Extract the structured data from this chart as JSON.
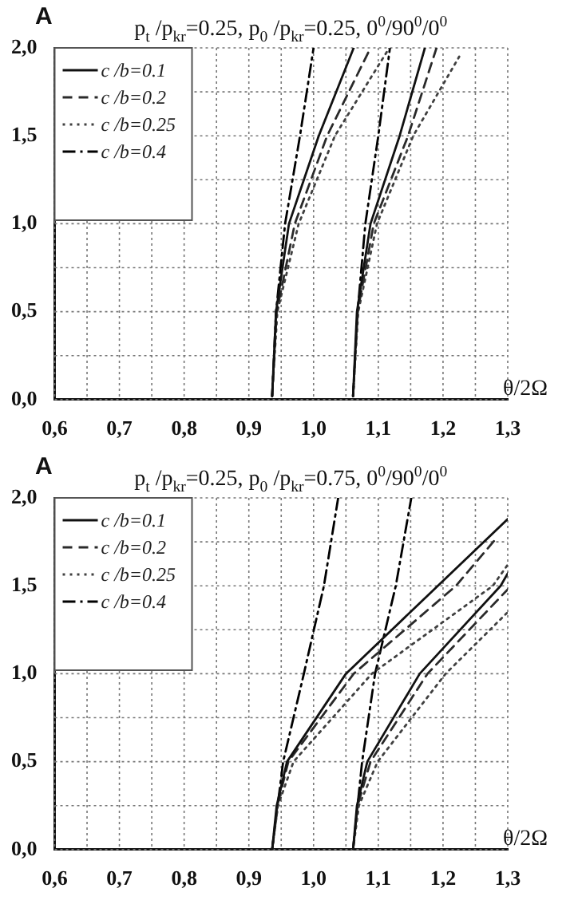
{
  "chart_data": [
    {
      "type": "line",
      "title": "p$_{t}$ /p$_{kr}$=0.25, p$_{0}$ /p$_{kr}$=0.25, 0$^{0}$/90$^{0}$/0$^{0}$",
      "xlabel": "θ/2Ω",
      "annotations": [
        "A"
      ],
      "xlim": [
        0.6,
        1.3
      ],
      "ylim": [
        0,
        2
      ],
      "xticks": [
        {
          "value": 0.6,
          "label": "0,6"
        },
        {
          "value": 0.65,
          "label": null
        },
        {
          "value": 0.7,
          "label": "0,7"
        },
        {
          "value": 0.75,
          "label": null
        },
        {
          "value": 0.8,
          "label": "0,8"
        },
        {
          "value": 0.85,
          "label": null
        },
        {
          "value": 0.9,
          "label": "0,9"
        },
        {
          "value": 0.95,
          "label": null
        },
        {
          "value": 1.0,
          "label": "1,0"
        },
        {
          "value": 1.05,
          "label": null
        },
        {
          "value": 1.1,
          "label": "1,1"
        },
        {
          "value": 1.15,
          "label": null
        },
        {
          "value": 1.2,
          "label": "1,2"
        },
        {
          "value": 1.25,
          "label": null
        },
        {
          "value": 1.3,
          "label": "1,3"
        }
      ],
      "yticks": [
        {
          "value": 0,
          "label": "0,0"
        },
        {
          "value": 0.25,
          "label": null
        },
        {
          "value": 0.5,
          "label": "0,5"
        },
        {
          "value": 0.75,
          "label": null
        },
        {
          "value": 1.0,
          "label": "1,0"
        },
        {
          "value": 1.25,
          "label": null
        },
        {
          "value": 1.5,
          "label": "1,5"
        },
        {
          "value": 1.75,
          "label": null
        },
        {
          "value": 2.0,
          "label": "2,0"
        }
      ],
      "grid": true,
      "legend": "top left",
      "marker": "none",
      "series": [
        {
          "name": "c /b=0.1",
          "color": "#111111",
          "line_style": "solid",
          "x": [
            0.936,
            0.942,
            0.962,
            1.008,
            1.062,
            null,
            1.061,
            1.067,
            1.088,
            1.133,
            1.172
          ],
          "values": [
            0.02,
            0.5,
            1.0,
            1.5,
            2.0,
            null,
            0.02,
            0.5,
            1.0,
            1.5,
            2.0
          ]
        },
        {
          "name": "c /b=0.2",
          "color": "#2a2a2a",
          "line_style": "dashed",
          "x": [
            0.936,
            0.943,
            0.971,
            1.021,
            1.088,
            null,
            1.061,
            1.068,
            1.093,
            1.146,
            1.19
          ],
          "values": [
            0.02,
            0.5,
            1.0,
            1.5,
            2.0,
            null,
            0.02,
            0.5,
            1.0,
            1.5,
            2.0
          ]
        },
        {
          "name": "c /b=0.25",
          "color": "#404040",
          "line_style": "dotted",
          "x": [
            0.936,
            0.944,
            0.977,
            1.033,
            1.117,
            null,
            1.061,
            1.069,
            1.098,
            1.154,
            1.225
          ],
          "values": [
            0.02,
            0.5,
            1.0,
            1.5,
            2.0,
            null,
            0.02,
            0.5,
            1.0,
            1.5,
            1.95
          ]
        },
        {
          "name": "c /b=0.4",
          "color": "#000000",
          "line_style": "dashdot",
          "x": [
            0.936,
            0.942,
            0.956,
            0.979,
            1.0,
            null,
            1.061,
            1.068,
            1.08,
            1.1,
            1.118
          ],
          "values": [
            0.02,
            0.5,
            1.0,
            1.5,
            2.0,
            null,
            0.02,
            0.5,
            1.0,
            1.5,
            2.0
          ]
        }
      ]
    },
    {
      "type": "line",
      "title": "p$_{t}$ /p$_{kr}$=0.25, p$_{0}$ /p$_{kr}$=0.75, 0$^{0}$/90$^{0}$/0$^{0}$",
      "xlabel": "θ/2Ω",
      "annotations": [
        "A"
      ],
      "xlim": [
        0.6,
        1.3
      ],
      "ylim": [
        0,
        2
      ],
      "xticks": [
        {
          "value": 0.6,
          "label": "0,6"
        },
        {
          "value": 0.65,
          "label": null
        },
        {
          "value": 0.7,
          "label": "0,7"
        },
        {
          "value": 0.75,
          "label": null
        },
        {
          "value": 0.8,
          "label": "0,8"
        },
        {
          "value": 0.85,
          "label": null
        },
        {
          "value": 0.9,
          "label": "0,9"
        },
        {
          "value": 0.95,
          "label": null
        },
        {
          "value": 1.0,
          "label": "1,0"
        },
        {
          "value": 1.05,
          "label": null
        },
        {
          "value": 1.1,
          "label": "1,1"
        },
        {
          "value": 1.15,
          "label": null
        },
        {
          "value": 1.2,
          "label": "1,2"
        },
        {
          "value": 1.25,
          "label": null
        },
        {
          "value": 1.3,
          "label": "1,3"
        }
      ],
      "yticks": [
        {
          "value": 0,
          "label": "0,0"
        },
        {
          "value": 0.25,
          "label": null
        },
        {
          "value": 0.5,
          "label": "0,5"
        },
        {
          "value": 0.75,
          "label": null
        },
        {
          "value": 1.0,
          "label": "1,0"
        },
        {
          "value": 1.25,
          "label": null
        },
        {
          "value": 1.5,
          "label": "1,5"
        },
        {
          "value": 1.75,
          "label": null
        },
        {
          "value": 2.0,
          "label": "2,0"
        }
      ],
      "grid": true,
      "legend": "top left",
      "marker": "none",
      "series": [
        {
          "name": "c /b=0.1",
          "color": "#111111",
          "line_style": "solid",
          "x": [
            0.936,
            0.943,
            0.959,
            1.05,
            1.192,
            1.3,
            null,
            1.061,
            1.067,
            1.083,
            1.164,
            1.289,
            1.3
          ],
          "values": [
            0.0,
            0.25,
            0.5,
            1.0,
            1.5,
            1.88,
            null,
            0.0,
            0.25,
            0.5,
            1.0,
            1.5,
            1.57
          ]
        },
        {
          "name": "c /b=0.2",
          "color": "#2a2a2a",
          "line_style": "dashed",
          "x": [
            0.936,
            0.944,
            0.961,
            1.062,
            1.22,
            1.28,
            null,
            1.061,
            1.068,
            1.088,
            1.176,
            1.3
          ],
          "values": [
            0.0,
            0.25,
            0.5,
            1.0,
            1.5,
            1.76,
            null,
            0.0,
            0.25,
            0.5,
            1.0,
            1.48
          ]
        },
        {
          "name": "c /b=0.25",
          "color": "#404040",
          "line_style": "dotted",
          "x": [
            0.936,
            0.945,
            0.969,
            1.09,
            1.277,
            1.3,
            null,
            1.061,
            1.07,
            1.099,
            1.204,
            1.3
          ],
          "values": [
            0.0,
            0.25,
            0.5,
            1.0,
            1.5,
            1.62,
            null,
            0.0,
            0.25,
            0.5,
            1.0,
            1.35
          ]
        },
        {
          "name": "c /b=0.4",
          "color": "#000000",
          "line_style": "dashdot",
          "x": [
            0.936,
            0.953,
            0.985,
            1.016,
            1.038,
            null,
            1.061,
            1.075,
            1.095,
            1.127,
            1.151
          ],
          "values": [
            0.0,
            0.5,
            1.0,
            1.5,
            2.0,
            null,
            0.0,
            0.5,
            1.0,
            1.5,
            2.0
          ]
        }
      ]
    }
  ]
}
